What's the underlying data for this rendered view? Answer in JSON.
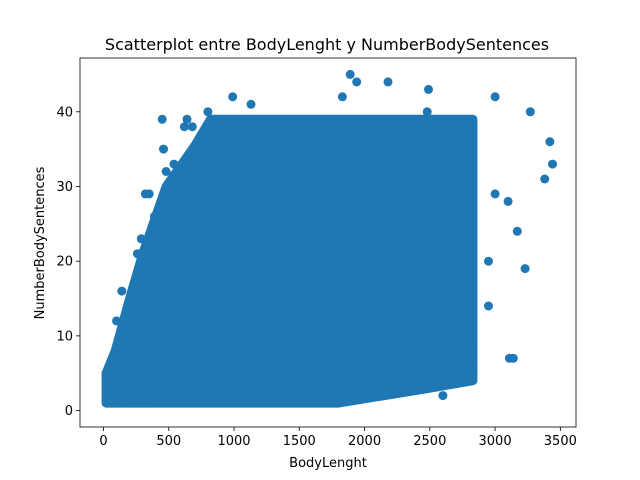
{
  "chart_data": {
    "type": "scatter",
    "title": "Scatterplot entre BodyLenght y NumberBodySentences",
    "xlabel": "BodyLenght",
    "ylabel": "NumberBodySentences",
    "xlim": [
      -180,
      3620
    ],
    "ylim": [
      -2.2,
      47.2
    ],
    "xticks": [
      0,
      500,
      1000,
      1500,
      2000,
      2500,
      3000,
      3500
    ],
    "yticks": [
      0,
      10,
      20,
      30,
      40
    ],
    "grid": false,
    "marker_color": "#1f77b4",
    "dense_region": {
      "description": "",
      "polygon": [
        [
          20,
          1
        ],
        [
          20,
          5
        ],
        [
          90,
          8
        ],
        [
          200,
          15
        ],
        [
          300,
          21
        ],
        [
          380,
          25
        ],
        [
          480,
          30
        ],
        [
          600,
          33
        ],
        [
          700,
          35.5
        ],
        [
          820,
          39
        ],
        [
          2830,
          39
        ],
        [
          2830,
          6
        ],
        [
          2830,
          4
        ],
        [
          2500,
          3
        ],
        [
          1800,
          1
        ],
        [
          340,
          1
        ]
      ]
    },
    "points": [
      {
        "x": 1890,
        "y": 45
      },
      {
        "x": 1940,
        "y": 44
      },
      {
        "x": 2180,
        "y": 44
      },
      {
        "x": 2490,
        "y": 43
      },
      {
        "x": 990,
        "y": 42
      },
      {
        "x": 1830,
        "y": 42
      },
      {
        "x": 3000,
        "y": 42
      },
      {
        "x": 1130,
        "y": 41
      },
      {
        "x": 3270,
        "y": 40
      },
      {
        "x": 2480,
        "y": 40
      },
      {
        "x": 800,
        "y": 40
      },
      {
        "x": 450,
        "y": 39
      },
      {
        "x": 640,
        "y": 39
      },
      {
        "x": 620,
        "y": 38
      },
      {
        "x": 680,
        "y": 38
      },
      {
        "x": 3420,
        "y": 36
      },
      {
        "x": 460,
        "y": 35
      },
      {
        "x": 3440,
        "y": 33
      },
      {
        "x": 3380,
        "y": 31
      },
      {
        "x": 3000,
        "y": 29
      },
      {
        "x": 3100,
        "y": 28
      },
      {
        "x": 3170,
        "y": 24
      },
      {
        "x": 2950,
        "y": 20
      },
      {
        "x": 3230,
        "y": 19
      },
      {
        "x": 2950,
        "y": 14
      },
      {
        "x": 3110,
        "y": 7
      },
      {
        "x": 3140,
        "y": 7
      },
      {
        "x": 320,
        "y": 29
      },
      {
        "x": 350,
        "y": 29
      },
      {
        "x": 480,
        "y": 32
      },
      {
        "x": 540,
        "y": 33
      },
      {
        "x": 390,
        "y": 26
      },
      {
        "x": 260,
        "y": 21
      },
      {
        "x": 290,
        "y": 23
      },
      {
        "x": 140,
        "y": 16
      },
      {
        "x": 100,
        "y": 12
      },
      {
        "x": 30,
        "y": 1
      },
      {
        "x": 60,
        "y": 1
      },
      {
        "x": 120,
        "y": 1
      },
      {
        "x": 200,
        "y": 1
      },
      {
        "x": 280,
        "y": 1
      },
      {
        "x": 330,
        "y": 1
      },
      {
        "x": 20,
        "y": 3
      },
      {
        "x": 20,
        "y": 5
      },
      {
        "x": 2830,
        "y": 5
      },
      {
        "x": 2820,
        "y": 8
      },
      {
        "x": 2600,
        "y": 2
      },
      {
        "x": 2480,
        "y": 3
      },
      {
        "x": 1550,
        "y": 2
      },
      {
        "x": 1050,
        "y": 2
      },
      {
        "x": 2200,
        "y": 3
      },
      {
        "x": 1900,
        "y": 2
      },
      {
        "x": 2700,
        "y": 4
      },
      {
        "x": 2750,
        "y": 12
      },
      {
        "x": 2800,
        "y": 20
      },
      {
        "x": 2790,
        "y": 30
      }
    ]
  }
}
